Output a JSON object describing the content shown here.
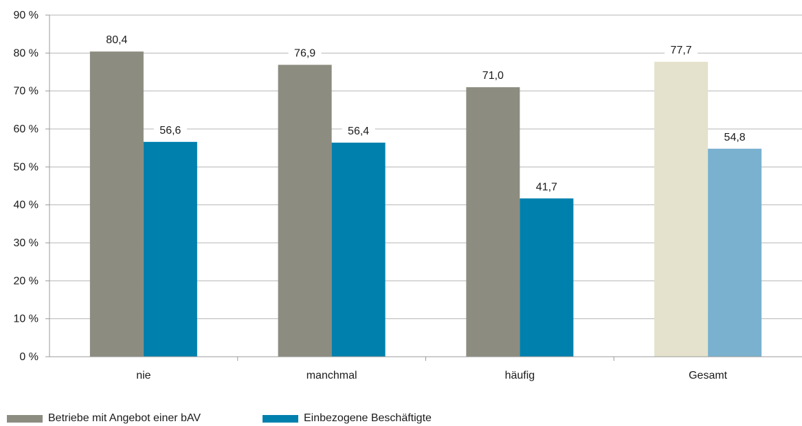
{
  "chart_data": {
    "type": "bar",
    "categories": [
      "nie",
      "manchmal",
      "häufig",
      "Gesamt"
    ],
    "series": [
      {
        "name": "Betriebe mit Angebot einer bAV",
        "values": [
          80.4,
          76.9,
          71.0,
          77.7
        ],
        "labels": [
          "80,4",
          "76,9",
          "71,0",
          "77,7"
        ]
      },
      {
        "name": "Einbezogene Beschäftigte",
        "values": [
          56.6,
          56.4,
          41.7,
          54.8
        ],
        "labels": [
          "56,6",
          "56,4",
          "41,7",
          "54,8"
        ]
      }
    ],
    "yticks": [
      0,
      10,
      20,
      30,
      40,
      50,
      60,
      70,
      80,
      90
    ],
    "ytick_labels": [
      "0 %",
      "10 %",
      "20 %",
      "30 %",
      "40 %",
      "50 %",
      "60 %",
      "70 %",
      "80 %",
      "90 %"
    ],
    "ylim": [
      0,
      90
    ],
    "grid": true,
    "legend_position": "bottom-left",
    "colors": {
      "series_1": "#8c8c80",
      "series_2": "#0080ad",
      "series_1_gesamt": "#e4e2cc",
      "series_2_gesamt": "#79b1cf",
      "grid": "#b5b5b5",
      "axis": "#9a9a9a"
    }
  }
}
